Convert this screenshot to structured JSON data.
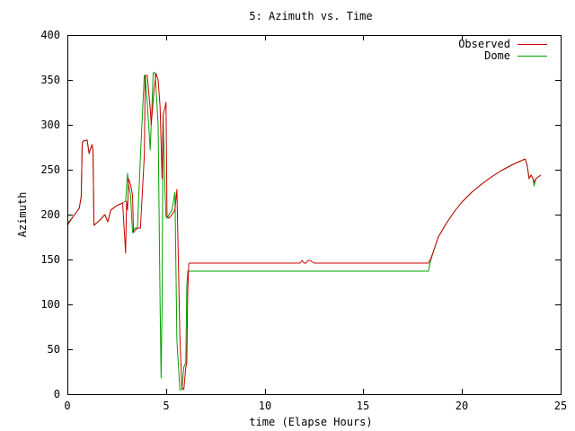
{
  "chart_data": {
    "type": "line",
    "title": "5: Azimuth vs. Time",
    "xlabel": "time (Elapse Hours)",
    "ylabel": "Azimuth",
    "xlim": [
      0,
      25
    ],
    "ylim": [
      0,
      400
    ],
    "xticks": [
      0,
      5,
      10,
      15,
      20,
      25
    ],
    "yticks": [
      0,
      50,
      100,
      150,
      200,
      250,
      300,
      350,
      400
    ],
    "grid": false,
    "legend_position": "top-right",
    "series": [
      {
        "name": "Observed",
        "color": "#cc0000",
        "x": [
          0.0,
          0.3,
          0.6,
          0.7,
          0.75,
          0.8,
          1.0,
          1.1,
          1.15,
          1.25,
          1.3,
          1.35,
          1.7,
          1.9,
          2.05,
          2.2,
          2.5,
          2.8,
          2.95,
          3.0,
          3.05,
          3.1,
          3.2,
          3.3,
          3.35,
          3.45,
          3.55,
          3.7,
          3.9,
          3.95,
          4.05,
          4.2,
          4.25,
          4.4,
          4.5,
          4.6,
          4.7,
          4.8,
          4.85,
          5.0,
          5.05,
          5.15,
          5.3,
          5.45,
          5.55,
          5.7,
          5.8,
          5.9,
          6.0,
          6.05,
          6.1,
          6.15,
          6.2,
          6.25,
          11.8,
          11.9,
          12.0,
          12.1,
          12.2,
          12.3,
          12.5,
          12.6,
          18.3,
          18.4,
          18.6,
          18.8,
          19.2,
          19.6,
          20.0,
          20.5,
          21.0,
          21.5,
          22.0,
          22.5,
          23.0,
          23.2,
          23.3,
          23.4,
          23.5,
          23.6,
          23.65,
          23.75,
          24.0
        ],
        "y": [
          188,
          198,
          207,
          220,
          280,
          282,
          283,
          268,
          272,
          278,
          272,
          188,
          195,
          200,
          192,
          205,
          210,
          213,
          157,
          215,
          205,
          240,
          233,
          222,
          180,
          183,
          185,
          185,
          265,
          355,
          355,
          318,
          300,
          340,
          357,
          350,
          320,
          240,
          310,
          325,
          198,
          196,
          200,
          205,
          228,
          65,
          8,
          5,
          30,
          35,
          115,
          145,
          146,
          146,
          146,
          149,
          146,
          146,
          149,
          149,
          146,
          146,
          146,
          150,
          162,
          175,
          190,
          203,
          214,
          225,
          234,
          242,
          249,
          255,
          260,
          262,
          255,
          240,
          244,
          240,
          236,
          240,
          244
        ]
      },
      {
        "name": "Dome",
        "color": "#00a000",
        "x": [
          0.0,
          0.3,
          0.6,
          0.7,
          0.75,
          0.8,
          1.0,
          1.1,
          1.15,
          1.25,
          1.3,
          1.35,
          1.7,
          1.9,
          2.05,
          2.2,
          2.5,
          2.8,
          2.95,
          3.05,
          3.1,
          3.2,
          3.3,
          3.35,
          3.45,
          3.55,
          3.7,
          3.9,
          3.95,
          4.05,
          4.2,
          4.25,
          4.35,
          4.45,
          4.6,
          4.7,
          4.75,
          4.8,
          4.85,
          4.95,
          5.0,
          5.05,
          5.15,
          5.3,
          5.45,
          5.55,
          5.7,
          5.8,
          5.9,
          6.0,
          6.05,
          6.1,
          6.15,
          6.2,
          18.3,
          18.4,
          18.6,
          18.8,
          19.2,
          19.6,
          20.0,
          20.5,
          21.0,
          21.5,
          22.0,
          22.5,
          23.0,
          23.2,
          23.3,
          23.4,
          23.5,
          23.6,
          23.65,
          23.75,
          24.0
        ],
        "y": [
          190,
          198,
          207,
          220,
          280,
          282,
          283,
          268,
          272,
          278,
          272,
          188,
          195,
          200,
          192,
          205,
          210,
          213,
          215,
          246,
          233,
          222,
          180,
          183,
          185,
          185,
          265,
          355,
          355,
          325,
          272,
          300,
          358,
          358,
          300,
          100,
          18,
          100,
          310,
          225,
          198,
          196,
          200,
          205,
          225,
          60,
          5,
          5,
          30,
          35,
          120,
          137,
          137,
          137,
          137,
          148,
          162,
          175,
          190,
          203,
          214,
          225,
          234,
          242,
          249,
          255,
          260,
          262,
          255,
          240,
          244,
          240,
          232,
          240,
          244
        ]
      }
    ]
  }
}
